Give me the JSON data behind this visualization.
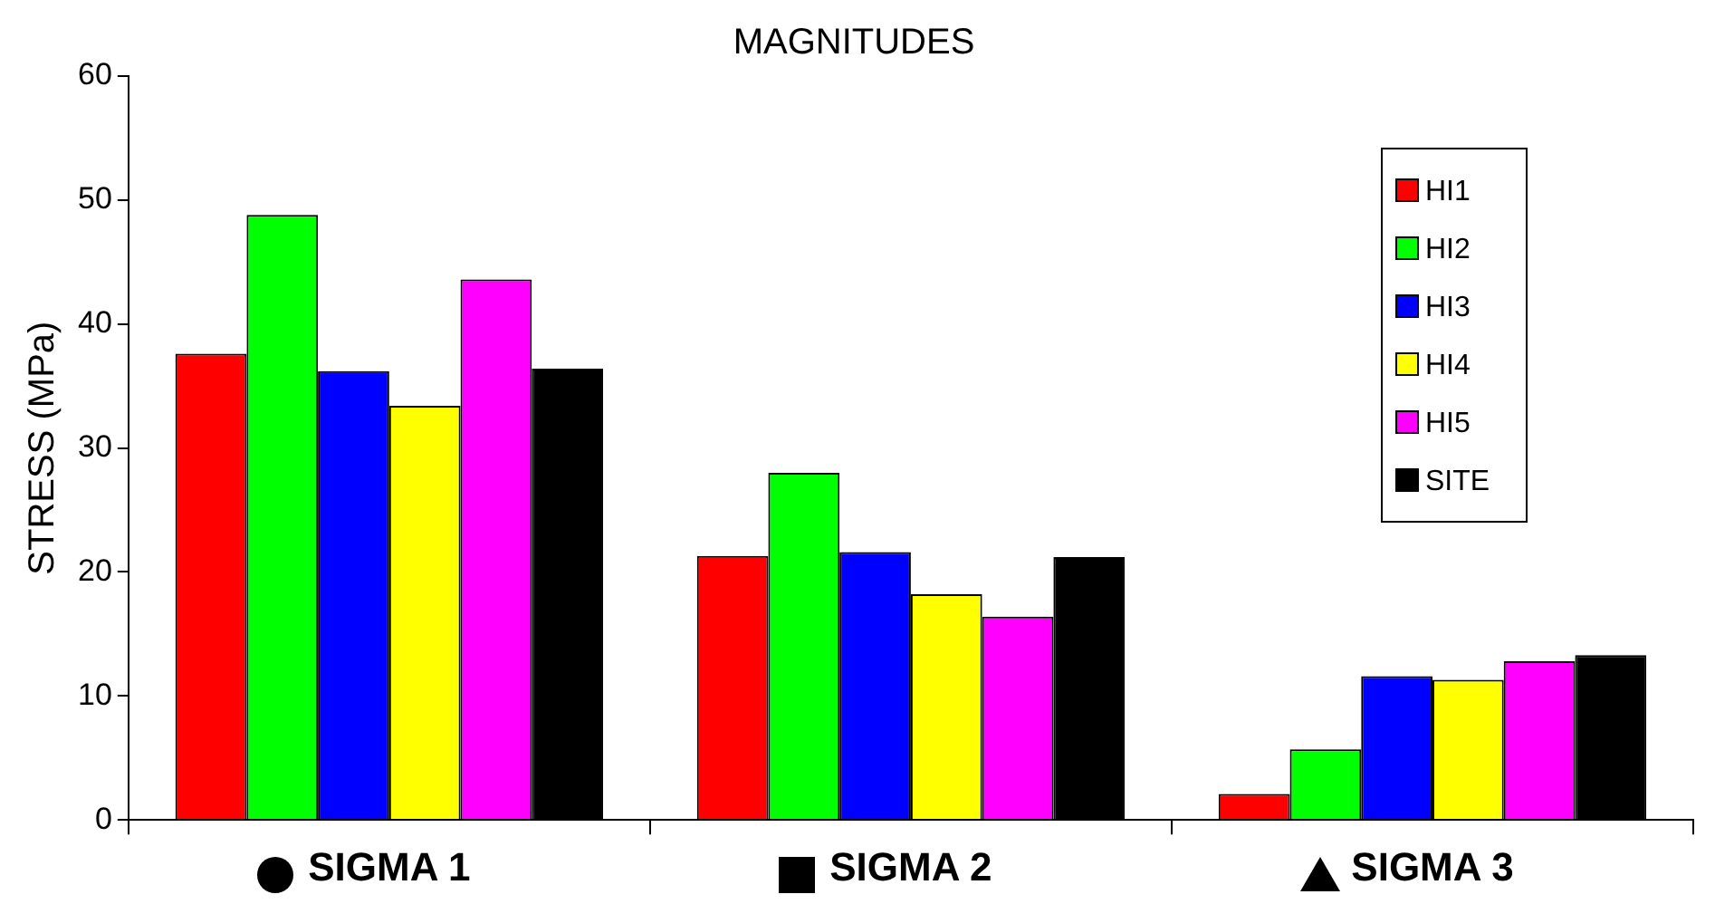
{
  "chart_data": {
    "type": "bar",
    "title": "MAGNITUDES",
    "ylabel": "STRESS (MPa)",
    "categories": [
      "SIGMA 1",
      "SIGMA 2",
      "SIGMA 3"
    ],
    "series": [
      {
        "name": "HI1",
        "color": "#ff0000",
        "values": [
          37.6,
          21.3,
          2.1
        ]
      },
      {
        "name": "HI2",
        "color": "#00ff00",
        "values": [
          48.8,
          28,
          5.7
        ]
      },
      {
        "name": "HI3",
        "color": "#0000ff",
        "values": [
          36.2,
          21.6,
          11.6
        ]
      },
      {
        "name": "HI4",
        "color": "#ffff00",
        "values": [
          33.4,
          18.2,
          11.3
        ]
      },
      {
        "name": "HI5",
        "color": "#ff00ff",
        "values": [
          43.6,
          16.4,
          12.8
        ]
      },
      {
        "name": "SITE",
        "color": "#000000",
        "values": [
          36.4,
          21.2,
          13.3
        ]
      }
    ],
    "ylim": [
      0,
      60
    ],
    "yticks": [
      0,
      10,
      20,
      30,
      40,
      50,
      60
    ],
    "grid": false,
    "legend": "top right"
  }
}
